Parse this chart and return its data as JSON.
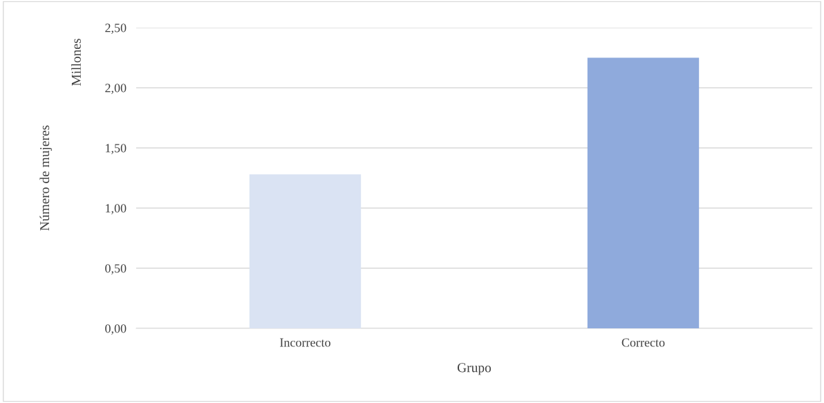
{
  "chart_data": {
    "type": "bar",
    "xlabel": "Grupo",
    "ylabel": "Número de mujeres",
    "annotations": [
      "Millones"
    ],
    "categories": [
      "Incorrecto",
      "Correcto"
    ],
    "values": [
      1.28,
      2.25
    ],
    "colors": [
      "#dae3f3",
      "#8faadc"
    ],
    "ylim": [
      0,
      2.5
    ],
    "yticks": [
      {
        "value": 0,
        "label": "0,00"
      },
      {
        "value": 0.5,
        "label": "0,50"
      },
      {
        "value": 1,
        "label": "1,00"
      },
      {
        "value": 1.5,
        "label": "1,50"
      },
      {
        "value": 2,
        "label": "2,00"
      },
      {
        "value": 2.5,
        "label": "2,50"
      }
    ],
    "grid": "y",
    "legend": false
  }
}
